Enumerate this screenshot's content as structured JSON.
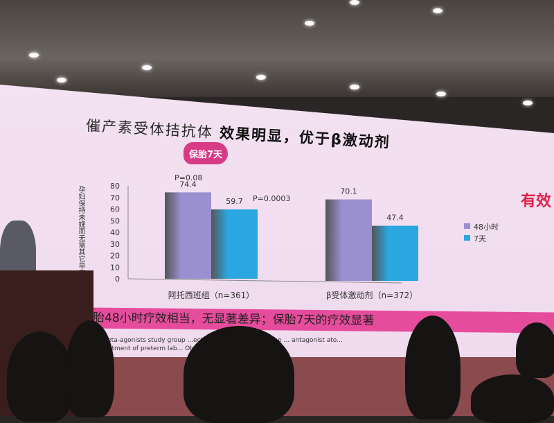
{
  "slide": {
    "title_part1": "催产素受体拮抗体",
    "title_part2": " 效果明显，优于β激动剂",
    "badge": "保胎7天",
    "side_text": "有效",
    "banner": "保胎48小时疗效相当，无显著差异；保胎7天的疗效显著",
    "reference_line1": "...osiban vs Beta-agonists study group ...ectiveness and safety of the ... antagonist ato...",
    "reference_line2": "...ts in the treatment of preterm lab... Obstet Gynecol,2001,10..."
  },
  "chart_data": {
    "type": "bar",
    "ylabel": "孕妇保持未娩而无需其它早产治疗比率（%",
    "ylim": [
      0,
      80
    ],
    "yticks": [
      0,
      10,
      20,
      30,
      40,
      50,
      60,
      70,
      80
    ],
    "categories": [
      "阿托西班组（n=361）",
      "β受体激动剂（n=372）"
    ],
    "series": [
      {
        "name": "48小时",
        "values": [
          74.4,
          70.1
        ],
        "color": "#9a8fcf"
      },
      {
        "name": "7天",
        "values": [
          59.7,
          47.4
        ],
        "color": "#2aa6e0"
      }
    ],
    "data_labels": [
      [
        "74.4",
        "70.1"
      ],
      [
        "59.7",
        "47.4"
      ]
    ],
    "annotations": [
      "P=0.08",
      "P=0.0003"
    ],
    "legend": "right",
    "grid": false
  }
}
